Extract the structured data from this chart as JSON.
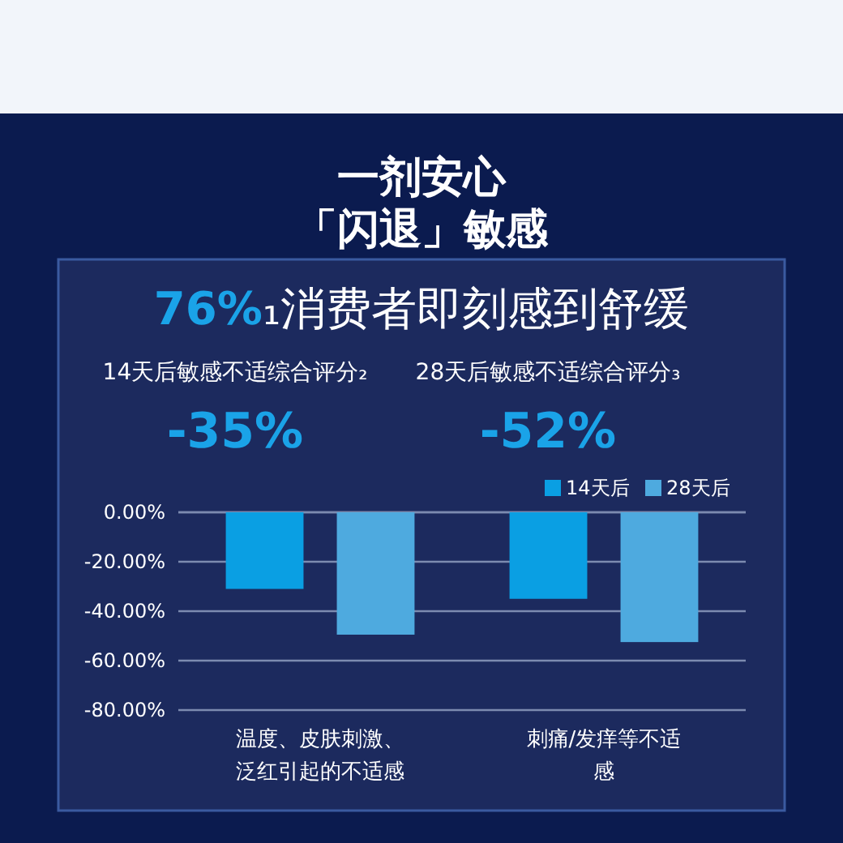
{
  "chart_data": {
    "type": "bar",
    "title": "一剂安心",
    "subtitle": "「闪退」敏感",
    "annotations": [
      "76%₁消费者即刻感到舒缓",
      "14天后敏感不适综合评分₂",
      "-35%",
      "28天后敏感不适综合评分₃",
      "-52%"
    ],
    "categories": [
      "温度、皮肤刺激、泛红引起的不适感",
      "刺痛/发痒等不适感"
    ],
    "series": [
      {
        "name": "14天后",
        "color": "#0a9fe3",
        "values": [
          -31,
          -35
        ]
      },
      {
        "name": "28天后",
        "color": "#4eaadf",
        "values": [
          -49.5,
          -52.5
        ]
      }
    ],
    "ylim": [
      -80,
      0
    ],
    "yticks": [
      {
        "value": 0,
        "label": "0.00%"
      },
      {
        "value": -20,
        "label": "-20.00%"
      },
      {
        "value": -40,
        "label": "-40.00%"
      },
      {
        "value": -60,
        "label": "-60.00%"
      },
      {
        "value": -80,
        "label": "-80.00%"
      }
    ],
    "grid": "y",
    "legend": "top right"
  }
}
